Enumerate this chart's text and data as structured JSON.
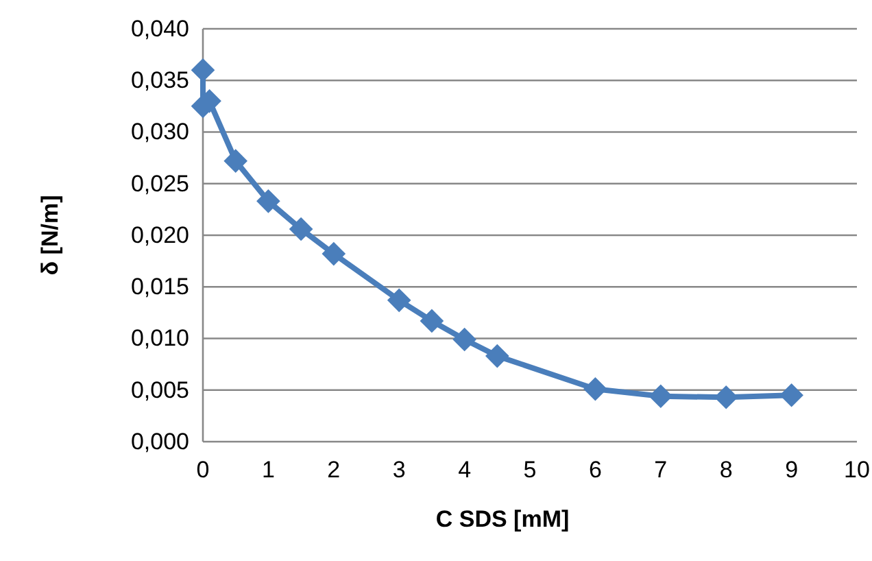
{
  "chart_data": {
    "type": "line",
    "xlabel": "C SDS [mM]",
    "ylabel": "δ [N/m]",
    "x": [
      0,
      0,
      0.1,
      0.5,
      1,
      1.5,
      2,
      3,
      3.5,
      4,
      4.5,
      6,
      7,
      8,
      9
    ],
    "series": [
      {
        "color": "#4a7ebb",
        "values": [
          0.036,
          0.0325,
          0.033,
          0.0272,
          0.0233,
          0.0206,
          0.0182,
          0.0137,
          0.0117,
          0.0099,
          0.0083,
          0.0051,
          0.0044,
          0.0043,
          0.0045
        ]
      }
    ],
    "xlim": [
      0,
      10
    ],
    "xticks": [
      0,
      1,
      2,
      3,
      4,
      5,
      6,
      7,
      8,
      9,
      10
    ],
    "ylim": [
      0,
      0.04
    ],
    "yticks": [
      {
        "value": 0,
        "label": "0,000"
      },
      {
        "value": 0.005,
        "label": "0,005"
      },
      {
        "value": 0.01,
        "label": "0,010"
      },
      {
        "value": 0.015,
        "label": "0,015"
      },
      {
        "value": 0.02,
        "label": "0,020"
      },
      {
        "value": 0.025,
        "label": "0,025"
      },
      {
        "value": 0.03,
        "label": "0,030"
      },
      {
        "value": 0.035,
        "label": "0,035"
      },
      {
        "value": 0.04,
        "label": "0,040"
      }
    ],
    "grid": "y",
    "marker": "diamond",
    "line_style": "solid"
  }
}
